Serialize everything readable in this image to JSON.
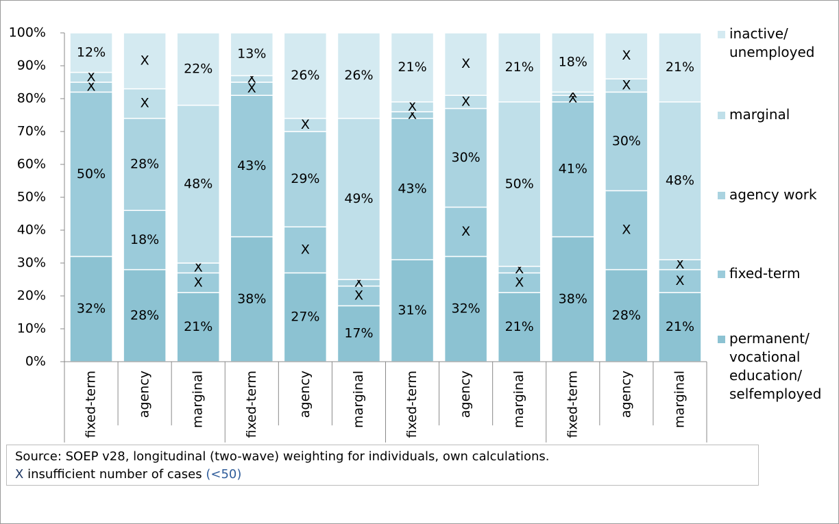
{
  "chart_data": {
    "type": "stacked-bar",
    "categories": [
      "fixed-term",
      "agency",
      "marginal",
      "fixed-term",
      "agency",
      "marginal",
      "fixed-term",
      "agency",
      "marginal",
      "fixed-term",
      "agency",
      "marginal"
    ],
    "series": [
      {
        "name": "permanent/ vocational education/ selfemployed",
        "color": "#8cc2d2",
        "values": [
          32,
          28,
          21,
          38,
          27,
          17,
          31,
          32,
          21,
          38,
          28,
          21
        ],
        "value_labels": [
          "32%",
          "28%",
          "21%",
          "38%",
          "27%",
          "17%",
          "31%",
          "32%",
          "21%",
          "38%",
          "28%",
          "21%"
        ]
      },
      {
        "name": "fixed-term",
        "color": "#9bcbda",
        "values": [
          50,
          18,
          6,
          43,
          14,
          6,
          43,
          15,
          6,
          41,
          24,
          7
        ],
        "value_labels": [
          "50%",
          "18%",
          "X",
          "43%",
          "X",
          "X",
          "43%",
          "X",
          "X",
          "41%",
          "X",
          "X"
        ]
      },
      {
        "name": "agency work",
        "color": "#aad3e0",
        "values": [
          3,
          28,
          3,
          4,
          29,
          2,
          2,
          30,
          2,
          2,
          30,
          3
        ],
        "value_labels": [
          "X",
          "28%",
          "X",
          "X",
          "29%",
          "X",
          "X",
          "30%",
          "X",
          "X",
          "30%",
          "X"
        ]
      },
      {
        "name": "marginal",
        "color": "#bfdfe9",
        "values": [
          3,
          9,
          48,
          2,
          4,
          49,
          3,
          4,
          50,
          1,
          4,
          48
        ],
        "value_labels": [
          "X",
          "X",
          "48%",
          "X",
          "X",
          "49%",
          "X",
          "X",
          "50%",
          "X",
          "X",
          "48%"
        ]
      },
      {
        "name": "inactive/ unemployed",
        "color": "#d4eaf1",
        "values": [
          12,
          17,
          22,
          13,
          26,
          26,
          21,
          19,
          21,
          18,
          14,
          21
        ],
        "value_labels": [
          "12%",
          "X",
          "22%",
          "13%",
          "26%",
          "26%",
          "21%",
          "X",
          "21%",
          "18%",
          "X",
          "21%"
        ]
      }
    ],
    "ylim": [
      0,
      100
    ],
    "yticks": [
      {
        "value": 0,
        "label": "0%"
      },
      {
        "value": 10,
        "label": "10%"
      },
      {
        "value": 20,
        "label": "20%"
      },
      {
        "value": 30,
        "label": "30%"
      },
      {
        "value": 40,
        "label": "40%"
      },
      {
        "value": 50,
        "label": "50%"
      },
      {
        "value": 60,
        "label": "60%"
      },
      {
        "value": 70,
        "label": "70%"
      },
      {
        "value": 80,
        "label": "80%"
      },
      {
        "value": 90,
        "label": "90%"
      },
      {
        "value": 100,
        "label": "100%"
      }
    ],
    "group_size": 3,
    "note": {
      "source": "Source: SOEP v28, longitudinal (two-wave) weighting for individuals, own calculations.",
      "symbol": "X",
      "text": "insufficient number of cases",
      "threshold": "(<50)"
    }
  }
}
